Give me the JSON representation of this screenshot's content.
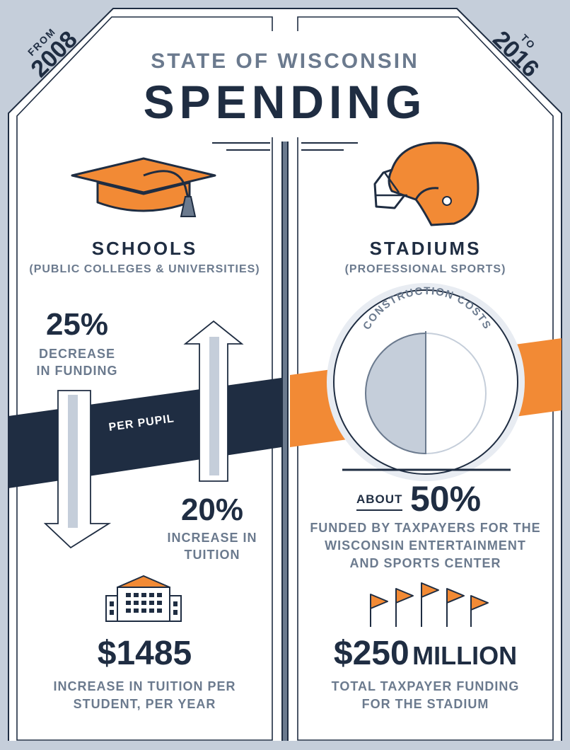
{
  "corner_left": {
    "small": "FROM",
    "big": "2008"
  },
  "corner_right": {
    "small": "TO",
    "big": "2016"
  },
  "header": {
    "kicker": "STATE OF WISCONSIN",
    "title": "SPENDING"
  },
  "schools": {
    "title": "SCHOOLS",
    "subtitle": "(PUBLIC COLLEGES & UNIVERSITIES)",
    "funding_change": {
      "value": "25%",
      "label_line1": "DECREASE",
      "label_line2": "IN FUNDING"
    },
    "band_label": "PER PUPIL",
    "tuition_change": {
      "value": "20%",
      "label_line1": "INCREASE IN",
      "label_line2": "TUITION"
    },
    "cost": {
      "value": "$1485",
      "label_line1": "INCREASE IN TUITION PER",
      "label_line2": "STUDENT, PER YEAR"
    }
  },
  "stadiums": {
    "title": "STADIUMS",
    "subtitle": "(PROFESSIONAL SPORTS)",
    "dial_label": "CONSTRUCTION COSTS",
    "share": {
      "prefix": "ABOUT",
      "value": "50%",
      "fraction": 0.5,
      "label_line1": "FUNDED BY TAXPAYERS FOR THE",
      "label_line2": "WISCONSIN ENTERTAINMENT",
      "label_line3": "AND SPORTS CENTER"
    },
    "total": {
      "value": "$250",
      "unit": "MILLION",
      "label_line1": "TOTAL TAXPAYER FUNDING",
      "label_line2": "FOR THE STADIUM"
    }
  },
  "icons": {
    "schools": [
      "graduation-cap-icon",
      "school-building-icon"
    ],
    "stadiums": [
      "football-helmet-icon",
      "pennant-flags-icon"
    ]
  },
  "colors": {
    "navy": "#1f2d42",
    "orange": "#f28a35",
    "slate": "#6b7a8e",
    "light": "#c5ceda"
  }
}
